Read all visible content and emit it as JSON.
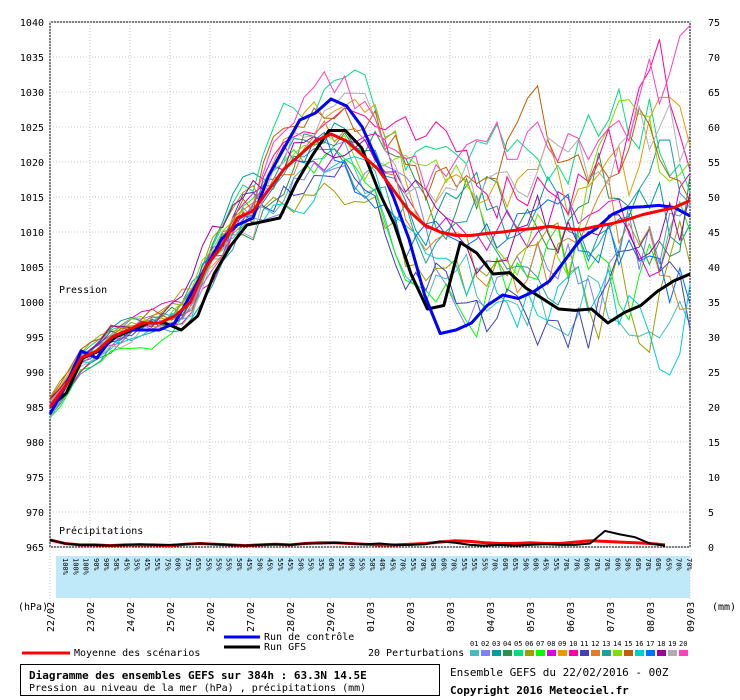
{
  "chart_data": {
    "type": "line",
    "title": "Diagramme des ensembles GEFS sur 384h : 63.3N 14.5E",
    "subtitle": "Pression au niveau de la mer (hPa) , précipitations (mm)",
    "left_axis_unit": "(hPa)",
    "right_axis_unit": "(mm)",
    "pressure_label": "Pression",
    "precip_label": "Précipitations",
    "ylim_left": [
      965,
      1040
    ],
    "ylim_right": [
      0,
      75
    ],
    "y_ticks_left": [
      965,
      970,
      975,
      980,
      985,
      990,
      995,
      1000,
      1005,
      1010,
      1015,
      1020,
      1025,
      1030,
      1035,
      1040
    ],
    "y_ticks_right": [
      0,
      5,
      10,
      15,
      20,
      25,
      30,
      35,
      40,
      45,
      50,
      55,
      60,
      65,
      70,
      75
    ],
    "x_labels": [
      "22/02",
      "23/02",
      "24/02",
      "25/02",
      "26/02",
      "27/02",
      "28/02",
      "29/02",
      "01/03",
      "02/03",
      "03/03",
      "04/03",
      "05/03",
      "06/03",
      "07/03",
      "08/03",
      "09/03"
    ],
    "prob_labels": [
      "100%",
      "100%",
      "100%",
      "90%",
      "90%",
      "50%",
      "45%",
      "35%",
      "45%",
      "55%",
      "75%",
      "60%",
      "75%",
      "65%",
      "55%",
      "55%",
      "55%",
      "50%",
      "45%",
      "50%",
      "45%",
      "55%",
      "45%",
      "50%",
      "55%",
      "35%",
      "60%",
      "55%",
      "60%",
      "55%",
      "50%",
      "40%",
      "45%",
      "70%",
      "55%",
      "70%",
      "50%",
      "60%",
      "70%",
      "55%",
      "55%",
      "55%",
      "70%",
      "60%",
      "65%",
      "50%",
      "60%",
      "45%",
      "55%",
      "70%",
      "70%",
      "60%",
      "70%",
      "70%",
      "60%",
      "50%",
      "60%",
      "70%",
      "60%",
      "65%",
      "70%",
      "70%"
    ],
    "series": [
      {
        "name": "Moyenne des scénarios",
        "color": "#ff0000",
        "values": [
          985,
          988,
          992,
          993,
          995,
          996,
          997,
          997,
          998,
          1000,
          1005,
          1008,
          1012,
          1013,
          1016,
          1019,
          1021,
          1023,
          1024,
          1023,
          1021,
          1019,
          1016,
          1013,
          1011,
          1010,
          1009.5,
          1009.5,
          1009.8,
          1010,
          1010.3,
          1010.5,
          1010.8,
          1010.5,
          1010.3,
          1010.8,
          1011.2,
          1011.8,
          1012.5,
          1013,
          1013.5,
          1014.5
        ]
      },
      {
        "name": "Run de contrôle",
        "color": "#0000ff",
        "values": [
          984,
          988,
          993,
          992,
          995,
          996,
          996,
          996,
          997,
          1001,
          1005,
          1009,
          1011,
          1012,
          1018,
          1022,
          1026,
          1027,
          1029,
          1028,
          1025,
          1020,
          1015,
          1009,
          1001,
          995.5,
          996,
          997,
          999.5,
          1001,
          1000.5,
          1001.5,
          1003,
          1006,
          1009,
          1010.5,
          1012.5,
          1013.5,
          1013.6,
          1013.8,
          1013.5,
          1012.3
        ]
      },
      {
        "name": "Run GFS",
        "color": "#000000",
        "values": [
          985,
          987,
          992,
          993,
          995,
          996,
          997,
          997,
          996,
          998,
          1004,
          1008,
          1011,
          1011.5,
          1012,
          1017,
          1021,
          1024.5,
          1024.5,
          1022,
          1016,
          1011,
          1004,
          999,
          999.5,
          1008.5,
          1007,
          1004,
          1004.2,
          1002,
          1000.5,
          999,
          998.8,
          999,
          997,
          998.5,
          999.5,
          1001.5,
          1003,
          1004
        ]
      }
    ],
    "precip_series": [
      {
        "name": "Moyenne des scénarios",
        "color": "#ff0000",
        "values": [
          1,
          0.5,
          0.3,
          0.3,
          0.2,
          0.3,
          0.3,
          0.3,
          0.2,
          0.4,
          0.5,
          0.4,
          0.3,
          0.2,
          0.3,
          0.4,
          0.3,
          0.5,
          0.6,
          0.6,
          0.5,
          0.4,
          0.3,
          0.3,
          0.4,
          0.5,
          0.7,
          0.9,
          0.8,
          0.6,
          0.5,
          0.5,
          0.6,
          0.5,
          0.5,
          0.7,
          0.9,
          0.8,
          0.7,
          0.6,
          0.5,
          0.3
        ]
      },
      {
        "name": "Run GFS",
        "color": "#000000",
        "values": [
          1,
          0.5,
          0.3,
          0.3,
          0.2,
          0.3,
          0.4,
          0.3,
          0.3,
          0.4,
          0.5,
          0.4,
          0.3,
          0.2,
          0.3,
          0.4,
          0.3,
          0.5,
          0.5,
          0.6,
          0.5,
          0.4,
          0.5,
          0.3,
          0.3,
          0.4,
          0.8,
          0.6,
          0.3,
          0.2,
          0.3,
          0.2,
          0.3,
          0.4,
          0.3,
          0.3,
          0.5,
          2.3,
          1.8,
          1.4,
          0.5,
          0.2
        ]
      }
    ],
    "perturbation_colors": [
      "#3fbfbf",
      "#7f7fff",
      "#009f9f",
      "#2f8f4f",
      "#00df7f",
      "#9f9f00",
      "#00ff00",
      "#df00df",
      "#df9f00",
      "#ff009f",
      "#3f3fbf",
      "#df7f1f",
      "#1f9f9f",
      "#7fdf00",
      "#bf5f00",
      "#00cfcf",
      "#0070ff",
      "#9f009f",
      "#afafaf",
      "#ff3fbf"
    ],
    "legend": {
      "mean": "Moyenne des scénarios",
      "control": "Run de contrôle",
      "gfs": "Run GFS",
      "perturbations": "20 Perturbations",
      "perturbation_numbers": [
        "01",
        "02",
        "03",
        "04",
        "05",
        "06",
        "07",
        "08",
        "09",
        "10",
        "11",
        "12",
        "13",
        "14",
        "15",
        "16",
        "17",
        "18",
        "19",
        "20"
      ]
    }
  },
  "footer": {
    "title": "Diagramme des ensembles GEFS sur 384h : 63.3N 14.5E",
    "subtitle": "Pression au niveau de la mer (hPa) , précipitations (mm)",
    "run_info": "Ensemble GEFS du 22/02/2016 - 00Z",
    "copyright": "Copyright 2016 Meteociel.fr"
  }
}
